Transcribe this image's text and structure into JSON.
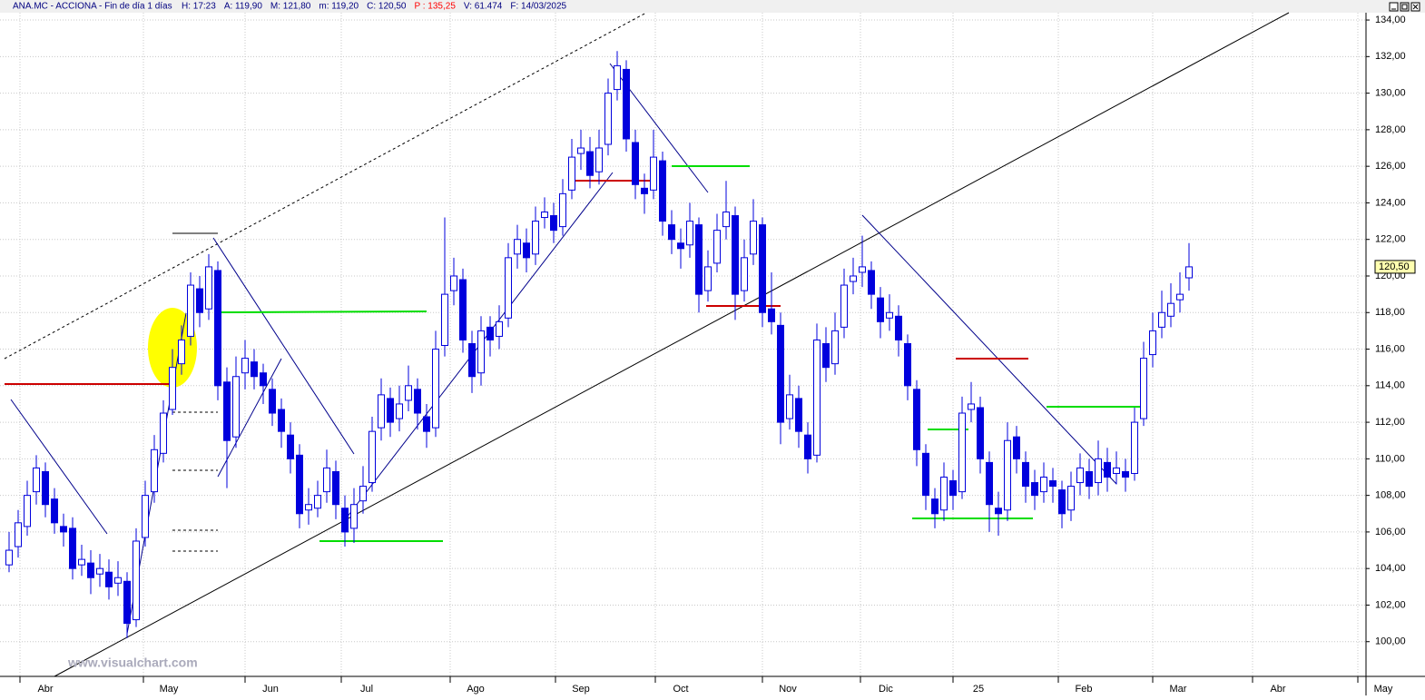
{
  "chart_data": {
    "type": "candlestick",
    "title": "ANA.MC - ACCIONA - Fin de día 1 días",
    "header_fields": [
      "H: 17:23",
      "A: 119,90",
      "M: 121,80",
      "m: 119,20",
      "C: 120,50",
      "P : 135,25",
      "V: 61.474",
      "F: 14/03/2025"
    ],
    "header_highlight": 5,
    "watermark": "www.visualchart.com",
    "up_color": "#ffffff",
    "down_color": "#0000dd",
    "edge_color": "#0000dd",
    "grid": true,
    "ylim": [
      98.1,
      134.4
    ],
    "yticks": [
      {
        "value": 100,
        "label": "100,00"
      },
      {
        "value": 102,
        "label": "102,00"
      },
      {
        "value": 104,
        "label": "104,00"
      },
      {
        "value": 106,
        "label": "106,00"
      },
      {
        "value": 108,
        "label": "108,00"
      },
      {
        "value": 110,
        "label": "110,00"
      },
      {
        "value": 112,
        "label": "112,00"
      },
      {
        "value": 114,
        "label": "114,00"
      },
      {
        "value": 116,
        "label": "116,00"
      },
      {
        "value": 118,
        "label": "118,00"
      },
      {
        "value": 120,
        "label": "120,00"
      },
      {
        "value": 122,
        "label": "122,00"
      },
      {
        "value": 124,
        "label": "124,00"
      },
      {
        "value": 126,
        "label": "126,00"
      },
      {
        "value": 128,
        "label": "128,00"
      },
      {
        "value": 130,
        "label": "130,00"
      },
      {
        "value": 132,
        "label": "132,00"
      },
      {
        "value": 134,
        "label": "134,00"
      }
    ],
    "last_label": {
      "value": 120.5,
      "label": "120,50"
    },
    "xlim": [
      0,
      150.5
    ],
    "xticks": [
      {
        "value": 2.2,
        "label": "Abr"
      },
      {
        "value": 15.8,
        "label": "May"
      },
      {
        "value": 27,
        "label": "Jun"
      },
      {
        "value": 37.6,
        "label": "Jul"
      },
      {
        "value": 49.6,
        "label": "Ago"
      },
      {
        "value": 61.2,
        "label": "Sep"
      },
      {
        "value": 72.2,
        "label": "Oct"
      },
      {
        "value": 84,
        "label": "Nov"
      },
      {
        "value": 94.8,
        "label": "Dic"
      },
      {
        "value": 105,
        "label": "25"
      },
      {
        "value": 116.6,
        "label": "Feb"
      },
      {
        "value": 127,
        "label": "Mar"
      },
      {
        "value": 138,
        "label": "Abr"
      },
      {
        "value": 149.6,
        "label": "May"
      }
    ],
    "x": [
      1,
      2,
      3,
      4,
      5,
      6,
      7,
      8,
      9,
      10,
      11,
      12,
      13,
      14,
      15,
      16,
      17,
      18,
      19,
      20,
      21,
      22,
      23,
      24,
      25,
      26,
      27,
      28,
      29,
      30,
      31,
      32,
      33,
      34,
      35,
      36,
      37,
      38,
      39,
      40,
      41,
      42,
      43,
      44,
      45,
      46,
      47,
      48,
      49,
      50,
      51,
      52,
      53,
      54,
      55,
      56,
      57,
      58,
      59,
      60,
      61,
      62,
      63,
      64,
      65,
      66,
      67,
      68,
      69,
      70,
      71,
      72,
      73,
      74,
      75,
      76,
      77,
      78,
      79,
      80,
      81,
      82,
      83,
      84,
      85,
      86,
      87,
      88,
      89,
      90,
      91,
      92,
      93,
      94,
      95,
      96,
      97,
      98,
      99,
      100,
      101,
      102,
      103,
      104,
      105,
      106,
      107,
      108,
      109,
      110,
      111,
      112,
      113,
      114,
      115,
      116,
      117,
      118,
      119,
      120,
      121,
      122,
      123,
      124,
      125,
      126,
      127,
      128,
      129,
      130,
      131
    ],
    "open": [
      104.2,
      105.2,
      106.3,
      108.2,
      109.3,
      107.8,
      106.3,
      106.2,
      104.2,
      104.3,
      103.7,
      103.8,
      103.2,
      103.3,
      101.2,
      105.7,
      108.2,
      110.3,
      112.7,
      115.2,
      116.7,
      119.3,
      118.2,
      120.3,
      114.2,
      111.2,
      114.7,
      115.3,
      114.7,
      113.8,
      112.7,
      111.3,
      110.2,
      107.2,
      107.3,
      108.2,
      109.3,
      107.3,
      106.2,
      107.7,
      108.7,
      111.7,
      113.3,
      112.2,
      113.2,
      113.8,
      112.3,
      111.7,
      116.2,
      119.2,
      119.8,
      116.3,
      114.7,
      117.2,
      116.7,
      117.7,
      121.2,
      121.8,
      121.2,
      123.2,
      123.3,
      122.7,
      124.7,
      126.7,
      126.8,
      125.7,
      127.2,
      130.2,
      131.3,
      127.3,
      124.8,
      124.7,
      126.3,
      122.8,
      121.8,
      121.7,
      122.8,
      119.2,
      120.7,
      122.7,
      123.3,
      119.2,
      121.2,
      122.8,
      118.2,
      117.3,
      112.2,
      113.3,
      111.3,
      110.2,
      116.3,
      115.2,
      117.2,
      119.7,
      120.2,
      120.3,
      118.8,
      117.7,
      117.8,
      116.3,
      113.8,
      110.3,
      107.8,
      107.2,
      108.8,
      108.2,
      112.7,
      112.8,
      109.8,
      107.3,
      107.2,
      111.2,
      109.8,
      108.7,
      108.2,
      108.8,
      108.3,
      107.2,
      108.7,
      109.3,
      108.7,
      109.8,
      109.2,
      109.3,
      109.2,
      112.2,
      115.7,
      117.2,
      117.8,
      118.7,
      119.9
    ],
    "high": [
      106,
      107.2,
      108.8,
      110.2,
      109.8,
      108.4,
      107,
      106.8,
      105.3,
      105,
      104.8,
      104.5,
      104.4,
      103.8,
      106.2,
      108.8,
      111.3,
      113.2,
      116,
      117.3,
      120.2,
      120,
      121.2,
      120.8,
      115,
      115.6,
      116.5,
      116,
      115.2,
      114.4,
      113.3,
      112,
      110.8,
      108.4,
      108.8,
      110.5,
      109.9,
      108,
      108.4,
      109.6,
      112.3,
      114.4,
      113.9,
      114,
      115.1,
      114.4,
      113,
      117,
      123.2,
      121,
      120.4,
      117,
      117.8,
      117.8,
      118.4,
      121.8,
      122.8,
      122.6,
      123.8,
      124.3,
      124,
      125.3,
      127.5,
      128,
      127.6,
      128,
      130.8,
      132.3,
      131.8,
      128,
      125.6,
      128,
      126.8,
      123.6,
      122.6,
      124,
      123.2,
      121.4,
      123.4,
      125.2,
      123.8,
      122,
      124.2,
      123.2,
      120.2,
      118,
      114.6,
      114,
      112,
      117.4,
      117.2,
      118,
      120.4,
      121,
      122.2,
      120.8,
      119.4,
      119,
      118.4,
      116.8,
      114.3,
      110.8,
      108.4,
      109.8,
      109.4,
      113.4,
      114.2,
      113.4,
      110.4,
      108.2,
      112,
      111.8,
      110.4,
      109.4,
      109.8,
      109.5,
      108.8,
      109.3,
      110.3,
      110,
      111,
      110.6,
      110.4,
      110,
      112.8,
      116.4,
      118,
      119.2,
      119.6,
      120.2,
      121.8
    ],
    "low": [
      103.8,
      104.6,
      105.8,
      107.5,
      106.8,
      105.9,
      105.2,
      103.4,
      103.6,
      102.6,
      103,
      102.3,
      102.5,
      100.2,
      100.8,
      105.2,
      107.6,
      109.8,
      112.4,
      114.6,
      116.2,
      117.2,
      117.6,
      113.2,
      108.4,
      110.6,
      113.8,
      113.8,
      113,
      111.8,
      110.6,
      109.2,
      106.2,
      106.4,
      106.8,
      107.6,
      106.7,
      105.2,
      105.4,
      107,
      108.2,
      111,
      111.2,
      111.5,
      112.6,
      111.6,
      110.6,
      111.2,
      115.6,
      118.4,
      115.8,
      113.6,
      114,
      115.6,
      116,
      117.2,
      120.4,
      120.2,
      120.6,
      122.6,
      121.8,
      122.2,
      124.2,
      125.8,
      124.8,
      125,
      126.6,
      129.6,
      126.8,
      124.2,
      123.4,
      124.2,
      122.2,
      121.2,
      120.4,
      121,
      118,
      118.6,
      120.2,
      122,
      117.6,
      118.6,
      120.6,
      117.2,
      116.8,
      110.8,
      111.6,
      110.6,
      109.2,
      109.8,
      114.2,
      114.6,
      116.6,
      119,
      119.4,
      118.2,
      116.6,
      117,
      115.6,
      113.2,
      109.6,
      107.2,
      106.2,
      106.6,
      107.2,
      107.8,
      112,
      109.2,
      106,
      105.8,
      106.6,
      109.2,
      107.6,
      107.2,
      107.6,
      107.6,
      106.2,
      106.6,
      108,
      107.8,
      108,
      108.2,
      108.6,
      108.2,
      108.8,
      111.8,
      115,
      116.6,
      117.2,
      118,
      119.2
    ],
    "close": [
      105,
      106.5,
      108,
      109.5,
      107.5,
      106.5,
      106,
      104,
      104.5,
      103.5,
      104,
      103,
      103.5,
      101,
      105.5,
      108,
      110.5,
      112.5,
      115,
      116.5,
      119.5,
      118,
      120.5,
      114,
      111,
      114.5,
      115.5,
      114.5,
      114,
      112.5,
      111.5,
      110,
      107,
      107.5,
      108,
      109.5,
      107.5,
      106,
      107.5,
      108.5,
      111.5,
      113.5,
      112,
      113,
      114,
      112.5,
      111.5,
      116,
      119,
      120,
      116.5,
      114.5,
      117,
      116.5,
      117.5,
      121,
      122,
      121,
      123,
      123.5,
      122.5,
      124.5,
      126.5,
      127,
      125.5,
      127,
      130,
      131.5,
      127.5,
      125,
      124.5,
      126.5,
      123,
      122,
      121.5,
      123,
      119,
      120.5,
      122.5,
      123.5,
      119,
      121,
      123,
      118,
      117.5,
      112,
      113.5,
      111.5,
      110,
      116.5,
      115,
      117,
      119.5,
      120,
      120.5,
      119,
      117.5,
      118,
      116.5,
      114,
      110.5,
      108,
      107,
      109,
      108,
      112.5,
      113,
      110,
      107.5,
      107,
      111,
      110,
      108.5,
      108,
      109,
      108.5,
      107,
      108.5,
      109.5,
      108.5,
      110,
      109,
      109.5,
      109,
      112,
      115.5,
      117,
      118,
      118.5,
      119,
      120.5
    ]
  }
}
